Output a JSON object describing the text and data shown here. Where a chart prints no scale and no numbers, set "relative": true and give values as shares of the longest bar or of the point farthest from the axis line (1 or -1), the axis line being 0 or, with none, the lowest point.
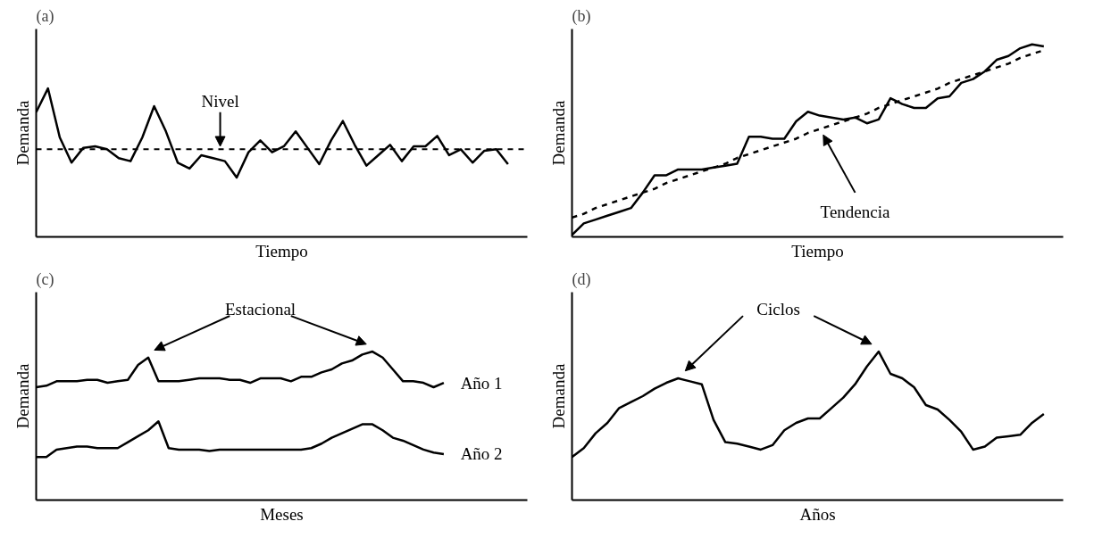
{
  "chart_data": [
    {
      "type": "line",
      "title": "(a)",
      "xlabel": "Tiempo",
      "ylabel": "Demanda",
      "relative": true,
      "categories": [
        null,
        null,
        null,
        null,
        null,
        null,
        null,
        null,
        null,
        null,
        null,
        null,
        null,
        null,
        null,
        null,
        null,
        null,
        null,
        null,
        null,
        null,
        null,
        null,
        null,
        null,
        null,
        null,
        null,
        null,
        null,
        null,
        null,
        null,
        null,
        null,
        null,
        null,
        null,
        null,
        null
      ],
      "series": [
        {
          "color": "#000000",
          "values": [
            0.84,
            1.0,
            0.67,
            0.5,
            0.6,
            0.61,
            0.59,
            0.53,
            0.51,
            0.67,
            0.88,
            0.71,
            0.5,
            0.46,
            0.55,
            0.53,
            0.51,
            0.4,
            0.57,
            0.65,
            0.57,
            0.61,
            0.71,
            0.6,
            0.49,
            0.65,
            0.78,
            0.62,
            0.48,
            0.55,
            0.62,
            0.51,
            0.61,
            0.61,
            0.68,
            0.55,
            0.59,
            0.5,
            0.58,
            0.59,
            0.49
          ]
        }
      ],
      "ref_lines": [
        {
          "axis": "y",
          "value": 0.59,
          "color": "#000000",
          "line_style": "dashed"
        }
      ],
      "annotations": [
        "Nivel"
      ]
    },
    {
      "type": "line",
      "title": "(b)",
      "xlabel": "Tiempo",
      "ylabel": "Demanda",
      "relative": true,
      "categories": [
        null,
        null,
        null,
        null,
        null,
        null,
        null,
        null,
        null,
        null,
        null,
        null,
        null,
        null,
        null,
        null,
        null,
        null,
        null,
        null,
        null,
        null,
        null,
        null,
        null,
        null,
        null,
        null,
        null,
        null,
        null,
        null,
        null,
        null,
        null,
        null,
        null,
        null,
        null,
        null,
        null
      ],
      "series": [
        {
          "color": "#000000",
          "values": [
            0.01,
            0.07,
            0.09,
            0.11,
            0.13,
            0.15,
            0.23,
            0.32,
            0.32,
            0.35,
            0.35,
            0.35,
            0.36,
            0.37,
            0.38,
            0.52,
            0.52,
            0.51,
            0.51,
            0.6,
            0.65,
            0.63,
            0.62,
            0.61,
            0.62,
            0.59,
            0.61,
            0.72,
            0.69,
            0.67,
            0.67,
            0.72,
            0.73,
            0.8,
            0.82,
            0.86,
            0.92,
            0.94,
            0.98,
            1.0,
            0.99
          ]
        },
        {
          "type": "line",
          "line_style": "dashed",
          "color": "#000000",
          "values": [
            0.1,
            0.12,
            0.15,
            0.17,
            0.19,
            0.21,
            0.23,
            0.25,
            0.28,
            0.3,
            0.32,
            0.34,
            0.36,
            0.38,
            0.41,
            0.43,
            0.45,
            0.47,
            0.49,
            0.51,
            0.54,
            0.56,
            0.58,
            0.6,
            0.62,
            0.64,
            0.67,
            0.69,
            0.71,
            0.73,
            0.75,
            0.77,
            0.8,
            0.82,
            0.84,
            0.86,
            0.88,
            0.9,
            0.93,
            0.95,
            0.97
          ]
        }
      ],
      "annotations": [
        "Tendencia"
      ]
    },
    {
      "type": "line",
      "title": "(c)",
      "xlabel": "Meses",
      "ylabel": "Demanda",
      "relative": true,
      "categories": [
        null,
        null,
        null,
        null,
        null,
        null,
        null,
        null,
        null,
        null,
        null,
        null,
        null,
        null,
        null,
        null,
        null,
        null,
        null,
        null,
        null,
        null,
        null,
        null,
        null,
        null,
        null,
        null,
        null,
        null,
        null,
        null,
        null,
        null,
        null,
        null,
        null,
        null,
        null,
        null,
        null
      ],
      "series": [
        {
          "name": "Año 1",
          "color": "#000000",
          "values": [
            0.76,
            0.77,
            0.8,
            0.8,
            0.8,
            0.81,
            0.81,
            0.79,
            0.8,
            0.81,
            0.91,
            0.96,
            0.8,
            0.8,
            0.8,
            0.81,
            0.82,
            0.82,
            0.82,
            0.81,
            0.81,
            0.79,
            0.82,
            0.82,
            0.82,
            0.8,
            0.83,
            0.83,
            0.86,
            0.88,
            0.92,
            0.94,
            0.98,
            1.0,
            0.96,
            0.88,
            0.8,
            0.8,
            0.79,
            0.76,
            0.79
          ]
        },
        {
          "name": "Año 2",
          "color": "#000000",
          "values": [
            0.29,
            0.29,
            0.34,
            0.35,
            0.36,
            0.36,
            0.35,
            0.35,
            0.35,
            0.39,
            0.43,
            0.47,
            0.53,
            0.35,
            0.34,
            0.34,
            0.34,
            0.33,
            0.34,
            0.34,
            0.34,
            0.34,
            0.34,
            0.34,
            0.34,
            0.34,
            0.34,
            0.35,
            0.38,
            0.42,
            0.45,
            0.48,
            0.51,
            0.51,
            0.47,
            0.42,
            0.4,
            0.37,
            0.34,
            0.32,
            0.31
          ]
        }
      ],
      "annotations": [
        "Estacional"
      ]
    },
    {
      "type": "line",
      "title": "(d)",
      "xlabel": "Años",
      "ylabel": "Demanda",
      "relative": true,
      "categories": [
        null,
        null,
        null,
        null,
        null,
        null,
        null,
        null,
        null,
        null,
        null,
        null,
        null,
        null,
        null,
        null,
        null,
        null,
        null,
        null,
        null,
        null,
        null,
        null,
        null,
        null,
        null,
        null,
        null,
        null,
        null,
        null,
        null,
        null,
        null,
        null,
        null,
        null,
        null,
        null,
        null
      ],
      "series": [
        {
          "color": "#000000",
          "values": [
            0.29,
            0.35,
            0.45,
            0.52,
            0.62,
            0.66,
            0.7,
            0.75,
            0.79,
            0.82,
            0.8,
            0.78,
            0.54,
            0.39,
            0.38,
            0.36,
            0.34,
            0.37,
            0.47,
            0.52,
            0.55,
            0.55,
            0.62,
            0.69,
            0.78,
            0.9,
            1.0,
            0.85,
            0.82,
            0.76,
            0.64,
            0.61,
            0.54,
            0.46,
            0.34,
            0.36,
            0.42,
            0.43,
            0.44,
            0.52,
            0.58
          ]
        }
      ],
      "annotations": [
        "Ciclos"
      ]
    }
  ]
}
